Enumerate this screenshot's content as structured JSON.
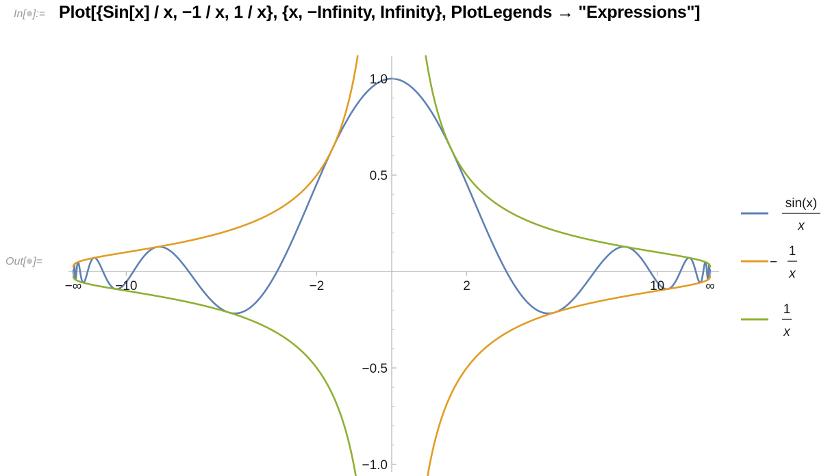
{
  "notebook": {
    "in_label": "In[",
    "in_label_end": "]:=",
    "out_label": "Out[",
    "out_label_end": "]=",
    "input": "Plot[{Sin[x] / x, −1 / x, 1 / x}, {x, −Infinity, Infinity}, PlotLegends → \"Expressions\"]"
  },
  "chart_data": {
    "type": "line",
    "title": "",
    "xlabel": "",
    "ylabel": "",
    "x_scale": "compactified (−∞ … ∞)",
    "x_ticks": [
      "−∞",
      "−10",
      "−2",
      "2",
      "10",
      "∞"
    ],
    "y_ticks": [
      "1.0",
      "0.5",
      "−0.5",
      "−1.0"
    ],
    "ylim": [
      -1.0,
      1.0
    ],
    "grid": false,
    "legend_position": "right",
    "series": [
      {
        "color": "#5e81b5",
        "legend": {
          "numerator": "sin(x)",
          "denominator": "x",
          "sign": ""
        },
        "x": [
          -30,
          -15,
          -10,
          -7.725,
          -4.493,
          -2,
          -1,
          0,
          1,
          2,
          4.493,
          7.725,
          10,
          15,
          30
        ],
        "y": [
          0.033,
          0.043,
          0.054,
          0.128,
          -0.217,
          0.455,
          0.841,
          1.0,
          0.841,
          0.455,
          -0.217,
          0.128,
          -0.054,
          0.043,
          -0.033
        ]
      },
      {
        "color": "#e19c24",
        "legend": {
          "numerator": "1",
          "denominator": "x",
          "sign": "−"
        },
        "x": [
          -30,
          -10,
          -5,
          -2,
          -1.35,
          1.1,
          2,
          5,
          10,
          30
        ],
        "y": [
          0.033,
          0.1,
          0.2,
          0.5,
          0.74,
          -0.91,
          -0.5,
          -0.2,
          -0.1,
          -0.033
        ]
      },
      {
        "color": "#8fb032",
        "legend": {
          "numerator": "1",
          "denominator": "x",
          "sign": ""
        },
        "x": [
          -30,
          -10,
          -5,
          -2,
          -1.1,
          1.35,
          2,
          5,
          10,
          30
        ],
        "y": [
          -0.033,
          -0.1,
          -0.2,
          -0.5,
          -0.91,
          0.74,
          0.5,
          0.2,
          0.1,
          0.033
        ]
      }
    ]
  }
}
